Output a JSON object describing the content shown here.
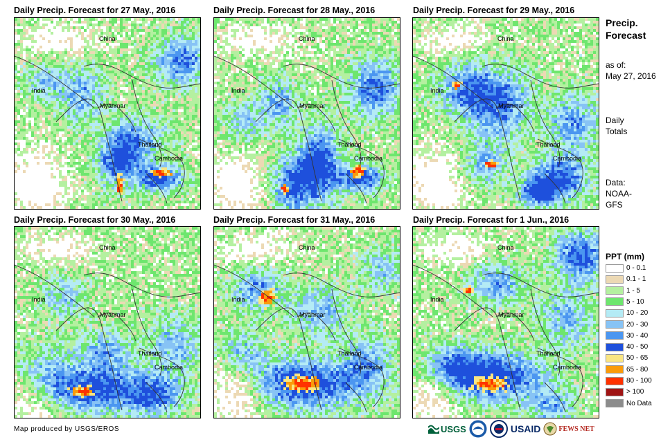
{
  "panels": [
    {
      "title": "Daily Precip. Forecast for 27 May., 2016"
    },
    {
      "title": "Daily Precip. Forecast for 28 May., 2016"
    },
    {
      "title": "Daily Precip. Forecast for 29 May., 2016"
    },
    {
      "title": "Daily Precip. Forecast for 30 May., 2016"
    },
    {
      "title": "Daily Precip. Forecast for 31 May., 2016"
    },
    {
      "title": "Daily Precip. Forecast for 1 Jun., 2016"
    }
  ],
  "map_labels": {
    "china": "China",
    "india": "India",
    "myanmar": "Myanmar",
    "thailand": "Thailand",
    "cambodia": "Cambodia"
  },
  "sidebar": {
    "title_line1": "Precip.",
    "title_line2": "Forecast",
    "asof_line1": "as of:",
    "asof_line2": "May 27, 2016",
    "daily_line1": "Daily",
    "daily_line2": "Totals",
    "data_line1": "Data:",
    "data_line2": "NOAA-",
    "data_line3": "GFS"
  },
  "legend": {
    "title": "PPT (mm)",
    "items": [
      {
        "label": "0 - 0.1",
        "color": "#ffffff"
      },
      {
        "label": "0.1 - 1",
        "color": "#ecd9b4"
      },
      {
        "label": "1 - 5",
        "color": "#b4f0a0"
      },
      {
        "label": "5 - 10",
        "color": "#6ee66e"
      },
      {
        "label": "10 - 20",
        "color": "#b4ebf5"
      },
      {
        "label": "20 - 30",
        "color": "#87c3f5"
      },
      {
        "label": "30 - 40",
        "color": "#4b96f0"
      },
      {
        "label": "40 - 50",
        "color": "#1e50dc"
      },
      {
        "label": "50 - 65",
        "color": "#fae682"
      },
      {
        "label": "65 - 80",
        "color": "#fa9b0a"
      },
      {
        "label": "80 - 100",
        "color": "#ff3200"
      },
      {
        "label": "> 100",
        "color": "#a01414"
      },
      {
        "label": "No Data",
        "color": "#8c8c8c"
      }
    ]
  },
  "credit": "Map produced by USGS/EROS",
  "logos": {
    "usgs": "USGS",
    "usaid": "USAID",
    "fewsnet": "FEWS NET"
  }
}
